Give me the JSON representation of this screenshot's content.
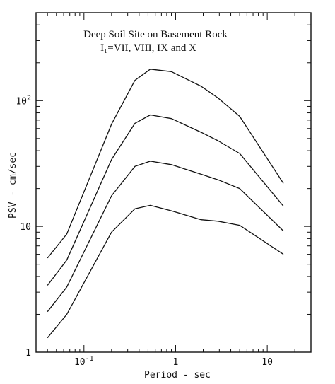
{
  "chart_data": {
    "type": "line",
    "title_lines": [
      "Deep Soil Site on Basement Rock",
      "I₁=VII, VIII, IX and X"
    ],
    "xlabel": "Period  -  sec",
    "ylabel": "PSV  -  cm/sec",
    "xscale": "log",
    "yscale": "log",
    "xlim": [
      0.03,
      30
    ],
    "ylim": [
      1,
      500
    ],
    "grid": false,
    "x_major_ticks": [
      {
        "value": 0.1,
        "base": "10",
        "exp": "-1"
      },
      {
        "value": 1,
        "label": "1"
      },
      {
        "value": 10,
        "label": "10"
      }
    ],
    "y_major_ticks": [
      {
        "value": 1,
        "label": "1"
      },
      {
        "value": 10,
        "label": "10"
      },
      {
        "value": 100,
        "base": "10",
        "exp": "2"
      }
    ],
    "x": [
      0.04,
      0.065,
      0.2,
      0.36,
      0.53,
      0.9,
      1.9,
      2.9,
      5,
      15
    ],
    "series": [
      {
        "values": [
          5.6,
          8.7,
          65,
          145,
          178,
          170,
          130,
          105,
          75,
          22
        ]
      },
      {
        "values": [
          3.4,
          5.4,
          34,
          66,
          77,
          72,
          56,
          48,
          38,
          14.5
        ]
      },
      {
        "values": [
          2.1,
          3.3,
          17.5,
          30,
          33,
          31,
          26,
          23.5,
          20,
          9.2
        ]
      },
      {
        "values": [
          1.3,
          2.0,
          9.0,
          13.8,
          14.7,
          13.3,
          11.3,
          11,
          10.2,
          6.0
        ]
      }
    ]
  }
}
